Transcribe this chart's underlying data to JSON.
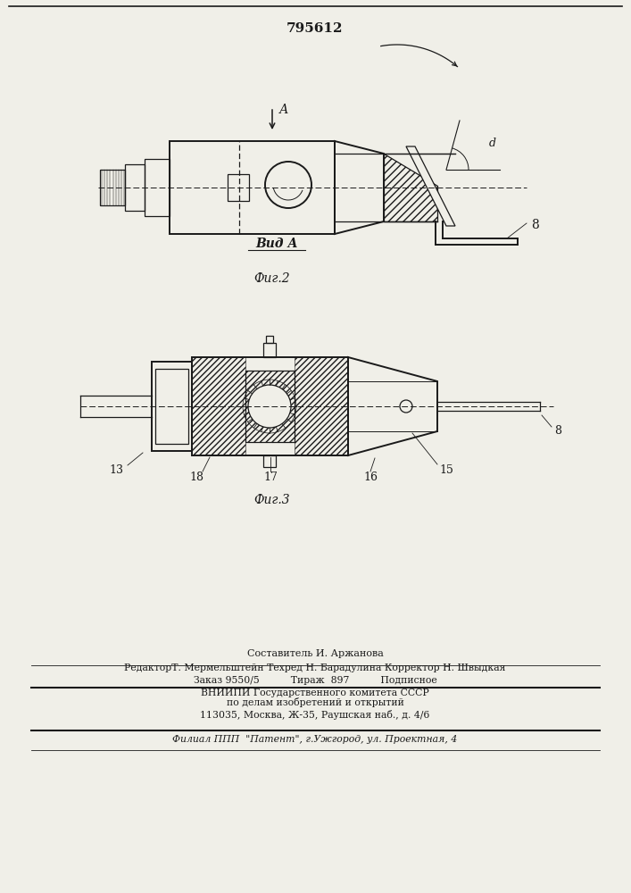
{
  "patent_number": "795612",
  "bg_color": "#f0efe8",
  "line_color": "#1a1a1a",
  "fig2_label": "Фиг.2",
  "fig3_label": "Фиг.3",
  "view_label": "Вид А",
  "arrow_label": "А",
  "label_d": "d",
  "label_8_fig2": "8",
  "label_13": "13",
  "label_18": "18",
  "label_17": "17",
  "label_16": "16",
  "label_15": "15",
  "label_8_fig3": "8",
  "footer_line1": "Составитель И. Аржанова",
  "footer_line2": "РедакторТ. Мермельштейн Техред Н. Барадулина Корректор Н. Швыдкая",
  "footer_line3": "Заказ 9550/5          Тираж  897          Подписное",
  "footer_line4": "ВНИИПИ Государственного комитета СССР",
  "footer_line5": "по делам изобретений и открытий",
  "footer_line6": "113035, Москва, Ж-35, Раушская наб., д. 4/6",
  "footer_line7": "Филиал ППП  \"Патент\", г.Ужгород, ул. Проектная, 4"
}
